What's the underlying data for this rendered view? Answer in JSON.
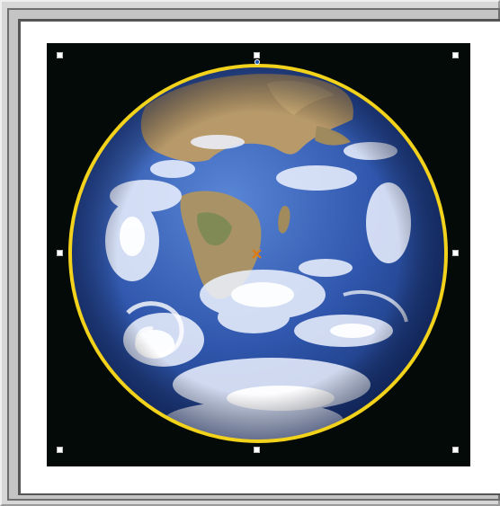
{
  "canvas": {
    "background_color": "#d4d4d4",
    "page_color": "#ffffff"
  },
  "image_object": {
    "subject": "earth-globe-photo",
    "ring_color": "#f2d21b",
    "sky_color": "#030a08",
    "ocean_color": "#2a4fa8",
    "land_color": "#a99266",
    "cloud_color": "#f2f6ff"
  },
  "selection": {
    "handle_color": "#ffffff",
    "rotate_handle_color": "#1a4fa8",
    "pivot_color": "#e07a10",
    "handles": [
      "tl",
      "tc",
      "tr",
      "ml",
      "mr",
      "bl",
      "bc",
      "br"
    ]
  }
}
